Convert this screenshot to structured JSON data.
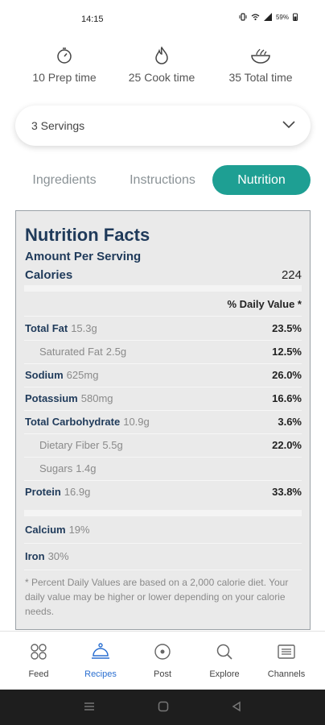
{
  "status_bar": {
    "time": "14:15",
    "battery": "59%"
  },
  "times": [
    {
      "icon": "timer-icon",
      "label": "10 Prep time"
    },
    {
      "icon": "flame-icon",
      "label": "25 Cook time"
    },
    {
      "icon": "bowl-icon",
      "label": "35 Total time"
    }
  ],
  "servings": {
    "value": "3 Servings",
    "icon": "chevron-down-icon"
  },
  "tabs": [
    {
      "label": "Ingredients",
      "active": false
    },
    {
      "label": "Instructions",
      "active": false
    },
    {
      "label": "Nutrition",
      "active": true
    }
  ],
  "accent_color": "#1e9f93",
  "nutrition": {
    "title": "Nutrition Facts",
    "amount_per_serving": "Amount Per Serving",
    "calories_label": "Calories",
    "calories_value": "224",
    "daily_value_header": "% Daily Value *",
    "rows": [
      {
        "name": "Total Fat",
        "amount": "15.3g",
        "pct": "23.5%",
        "sub": false
      },
      {
        "name": "Saturated Fat",
        "amount": "2.5g",
        "pct": "12.5%",
        "sub": true
      },
      {
        "name": "Sodium",
        "amount": "625mg",
        "pct": "26.0%",
        "sub": false
      },
      {
        "name": "Potassium",
        "amount": "580mg",
        "pct": "16.6%",
        "sub": false
      },
      {
        "name": "Total Carbohydrate",
        "amount": "10.9g",
        "pct": "3.6%",
        "sub": false
      },
      {
        "name": "Dietary Fiber",
        "amount": "5.5g",
        "pct": "22.0%",
        "sub": true
      },
      {
        "name": "Sugars",
        "amount": "1.4g",
        "pct": "",
        "sub": true
      },
      {
        "name": "Protein",
        "amount": "16.9g",
        "pct": "33.8%",
        "sub": false
      }
    ],
    "calcium": {
      "name": "Calcium",
      "amount": "19%"
    },
    "iron": {
      "name": "Iron",
      "amount": "30%"
    },
    "footnote": "* Percent Daily Values are based on a 2,000 calorie diet. Your daily value may be higher or lower depending on your calorie needs."
  },
  "bottom_nav": [
    {
      "icon": "feed-icon",
      "label": "Feed",
      "active": false
    },
    {
      "icon": "recipes-icon",
      "label": "Recipes",
      "active": true
    },
    {
      "icon": "post-icon",
      "label": "Post",
      "active": false
    },
    {
      "icon": "explore-icon",
      "label": "Explore",
      "active": false
    },
    {
      "icon": "channels-icon",
      "label": "Channels",
      "active": false
    }
  ]
}
